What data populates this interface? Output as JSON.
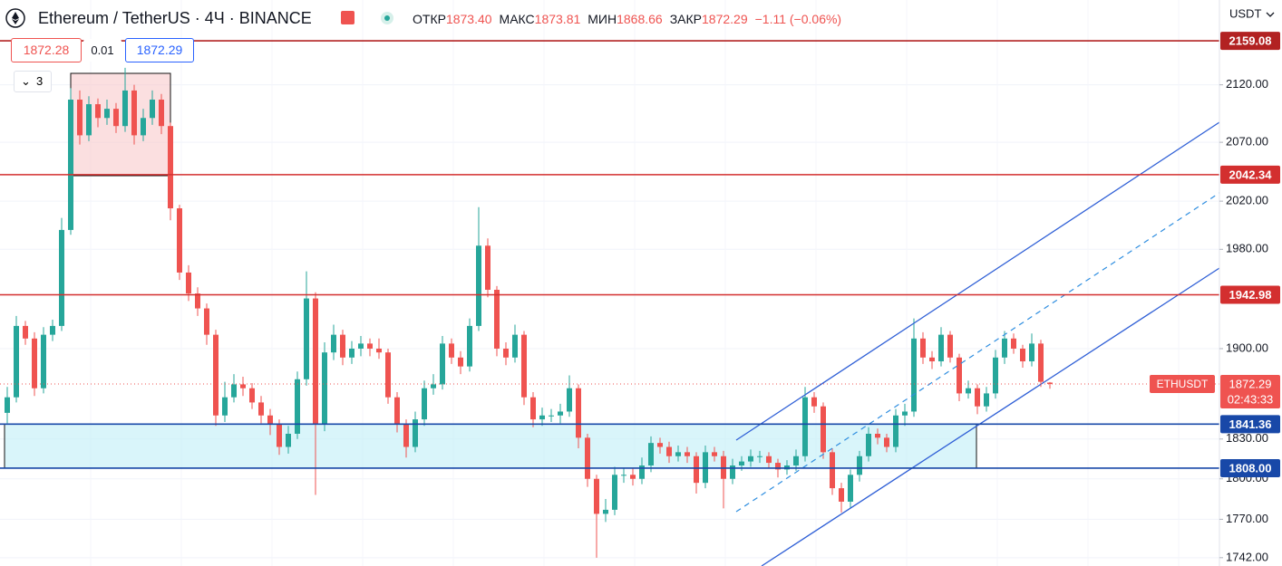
{
  "chart_data": {
    "type": "candlestick",
    "header": {
      "title": "Ethereum / TetherUS · 4Ч · BINANCE",
      "items": [
        {
          "label": "ОТКР",
          "value": "1873.40"
        },
        {
          "label": "МАКС",
          "value": "1873.81"
        },
        {
          "label": "МИН",
          "value": "1868.66"
        },
        {
          "label": "ЗАКР",
          "value": "1872.29"
        }
      ],
      "change": "−1.11 (−0.06%)"
    },
    "quote": {
      "bid": "1872.28",
      "spread": "0.01",
      "ask": "1872.29"
    },
    "indicators_count": 3,
    "currency": "USDT",
    "up_color": "#26a69a",
    "down_color": "#ef5350",
    "log_scale": true,
    "grid": true,
    "ylim": [
      1736,
      2196
    ],
    "yticks": [
      {
        "value": 2120,
        "label": "2120.00"
      },
      {
        "value": 2070,
        "label": "2070.00"
      },
      {
        "value": 2020,
        "label": "2020.00"
      },
      {
        "value": 1980,
        "label": "1980.00"
      },
      {
        "value": 1900,
        "label": "1900.00"
      },
      {
        "value": 1830,
        "label": "1830.00"
      },
      {
        "value": 1800,
        "label": "1800.00"
      },
      {
        "value": 1770,
        "label": "1770.00"
      },
      {
        "value": 1742,
        "label": "1742.00"
      }
    ],
    "levels": [
      {
        "value": 2159.08,
        "label": "2159.08",
        "color": "#b22222"
      },
      {
        "value": 2042.34,
        "label": "2042.34",
        "color": "#d32f2f"
      },
      {
        "value": 1942.98,
        "label": "1942.98",
        "color": "#d32f2f"
      },
      {
        "value": 1841.36,
        "label": "1841.36",
        "color": "#1848a8"
      },
      {
        "value": 1808,
        "label": "1808.00",
        "color": "#1848a8"
      }
    ],
    "last_price": {
      "value": 1872.29,
      "label": "1872.29",
      "symbol": "ETHUSDT",
      "countdown": "02:43:33"
    },
    "series": {
      "open": [
        1850,
        1862,
        1918,
        1908,
        1869,
        1911,
        1918,
        1996,
        2107,
        2076,
        2103,
        2091,
        2099,
        2084,
        2115,
        2076,
        2091,
        2107,
        2084,
        2014,
        1961,
        1944,
        1932,
        1911,
        1848,
        1862,
        1872,
        1869,
        1858,
        1848,
        1841,
        1824,
        1834,
        1876,
        1940,
        1841,
        1897,
        1911,
        1893,
        1900,
        1904,
        1900,
        1897,
        1862,
        1841,
        1824,
        1845,
        1869,
        1872,
        1904,
        1893,
        1886,
        1918,
        1983,
        1947,
        1900,
        1893,
        1911,
        1862,
        1845,
        1848,
        1848,
        1851,
        1869,
        1831,
        1800,
        1774,
        1777,
        1803,
        1803,
        1800,
        1810,
        1827,
        1824,
        1817,
        1820,
        1817,
        1797,
        1820,
        1817,
        1800,
        1810,
        1813,
        1817,
        1817,
        1812,
        1807,
        1810,
        1817,
        1862,
        1855,
        1820,
        1793,
        1783,
        1803,
        1817,
        1834,
        1831,
        1824,
        1848,
        1851,
        1908,
        1893,
        1890,
        1911,
        1893,
        1865,
        1869,
        1855,
        1865,
        1893,
        1908,
        1900,
        1890,
        1904,
        1873.4
      ],
      "high": [
        1870,
        1926,
        1922,
        1913,
        1917,
        1923,
        2006,
        2117,
        2115,
        2110,
        2108,
        2107,
        2104,
        2135,
        2120,
        2099,
        2115,
        2112,
        2087,
        2017,
        1967,
        1949,
        1936,
        1915,
        1874,
        1880,
        1878,
        1873,
        1863,
        1853,
        1845,
        1840,
        1882,
        1962,
        1945,
        1905,
        1919,
        1915,
        1906,
        1910,
        1908,
        1908,
        1900,
        1866,
        1845,
        1851,
        1875,
        1880,
        1910,
        1908,
        1898,
        1924,
        2015,
        1989,
        1950,
        1905,
        1919,
        1914,
        1866,
        1854,
        1853,
        1857,
        1879,
        1872,
        1834,
        1803,
        1785,
        1809,
        1808,
        1808,
        1816,
        1832,
        1831,
        1828,
        1825,
        1824,
        1820,
        1825,
        1824,
        1821,
        1815,
        1817,
        1822,
        1821,
        1820,
        1815,
        1814,
        1822,
        1870,
        1866,
        1858,
        1823,
        1797,
        1807,
        1821,
        1839,
        1838,
        1834,
        1853,
        1857,
        1924,
        1913,
        1898,
        1917,
        1914,
        1896,
        1875,
        1872,
        1870,
        1899,
        1914,
        1912,
        1903,
        1912,
        1907,
        1873.81
      ],
      "low": [
        1842,
        1858,
        1903,
        1863,
        1865,
        1906,
        1914,
        1992,
        2068,
        2071,
        2083,
        2085,
        2078,
        2079,
        2068,
        2071,
        2085,
        2077,
        2004,
        1955,
        1938,
        1926,
        1903,
        1840,
        1843,
        1858,
        1863,
        1853,
        1842,
        1833,
        1818,
        1819,
        1830,
        1871,
        1788,
        1836,
        1891,
        1887,
        1888,
        1894,
        1894,
        1892,
        1857,
        1835,
        1816,
        1820,
        1840,
        1864,
        1868,
        1888,
        1880,
        1882,
        1914,
        1941,
        1894,
        1887,
        1889,
        1856,
        1839,
        1840,
        1843,
        1842,
        1847,
        1823,
        1794,
        1742,
        1768,
        1773,
        1797,
        1795,
        1796,
        1805,
        1819,
        1812,
        1813,
        1812,
        1789,
        1793,
        1813,
        1778,
        1796,
        1806,
        1809,
        1812,
        1808,
        1801,
        1803,
        1806,
        1813,
        1850,
        1815,
        1788,
        1775,
        1778,
        1798,
        1813,
        1826,
        1820,
        1820,
        1840,
        1847,
        1888,
        1884,
        1886,
        1889,
        1859,
        1861,
        1849,
        1851,
        1861,
        1888,
        1896,
        1885,
        1886,
        1870,
        1868.66
      ],
      "close": [
        1862,
        1918,
        1908,
        1869,
        1911,
        1918,
        1996,
        2107,
        2076,
        2103,
        2091,
        2099,
        2084,
        2115,
        2076,
        2091,
        2107,
        2084,
        2014,
        1961,
        1944,
        1932,
        1911,
        1848,
        1862,
        1872,
        1869,
        1858,
        1848,
        1841,
        1824,
        1834,
        1876,
        1940,
        1841,
        1897,
        1911,
        1893,
        1900,
        1904,
        1900,
        1897,
        1862,
        1841,
        1824,
        1845,
        1869,
        1872,
        1904,
        1893,
        1886,
        1918,
        1983,
        1947,
        1900,
        1893,
        1911,
        1862,
        1845,
        1848,
        1848,
        1851,
        1869,
        1831,
        1800,
        1774,
        1777,
        1803,
        1803,
        1800,
        1810,
        1827,
        1824,
        1817,
        1820,
        1817,
        1797,
        1820,
        1817,
        1800,
        1810,
        1813,
        1817,
        1817,
        1812,
        1807,
        1810,
        1817,
        1862,
        1855,
        1820,
        1793,
        1783,
        1803,
        1817,
        1834,
        1831,
        1824,
        1848,
        1851,
        1908,
        1893,
        1890,
        1911,
        1893,
        1865,
        1869,
        1855,
        1865,
        1893,
        1908,
        1900,
        1890,
        1904,
        1874,
        1872.29
      ]
    }
  }
}
